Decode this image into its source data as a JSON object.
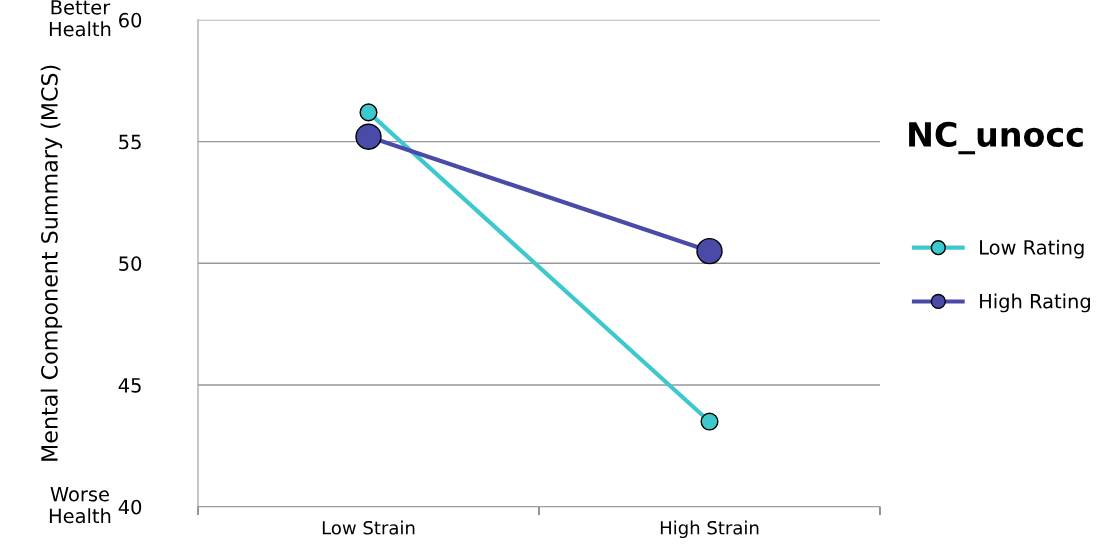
{
  "chart_data": {
    "type": "line",
    "title": "NC_unocc",
    "ylabel": "Mental Component Summary (MCS)",
    "categories": [
      "Low Strain",
      "High Strain"
    ],
    "series": [
      {
        "name": "Low Rating",
        "color": "#3cc8cc",
        "values": [
          56.2,
          43.5
        ]
      },
      {
        "name": "High Rating",
        "color": "#4a4aa8",
        "values": [
          55.2,
          50.5
        ]
      }
    ],
    "ylim": [
      40,
      60
    ],
    "yticks": [
      40,
      45,
      50,
      55,
      60
    ],
    "grid": "y",
    "legend": "right",
    "marker": "circle",
    "line_style": "solid",
    "annotations": [
      "Better Health",
      "Worse Health"
    ]
  }
}
